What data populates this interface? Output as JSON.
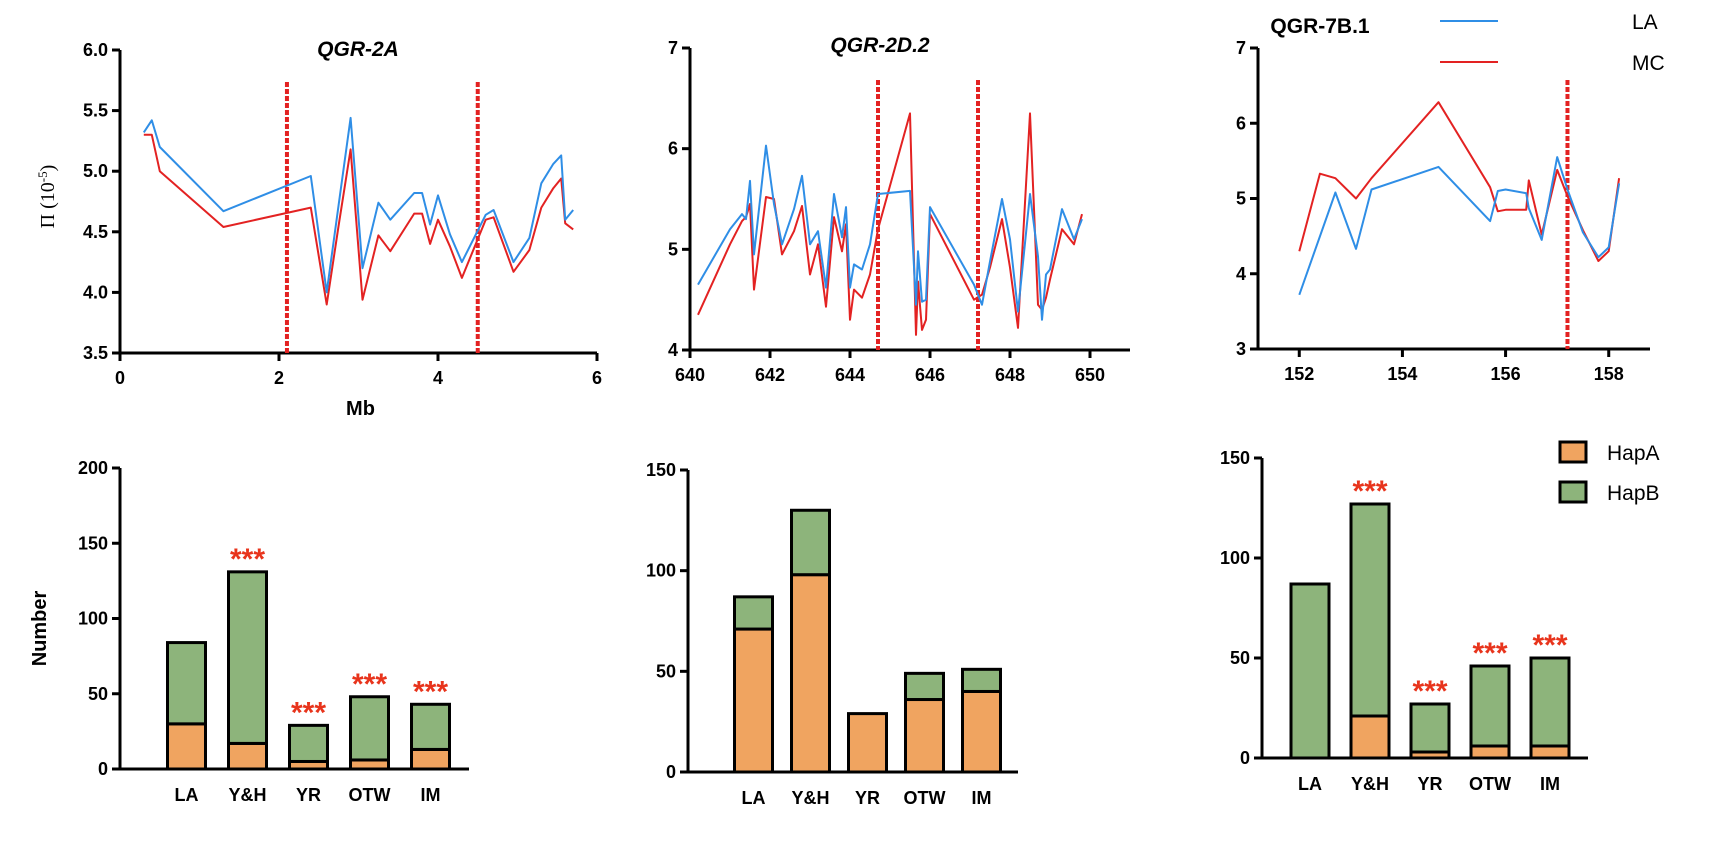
{
  "colors": {
    "LA_line": "#2f8ee6",
    "MC_line": "#e32222",
    "marker": "#e32222",
    "HapA": "#f0a460",
    "HapB": "#8db47b",
    "sig": "#e8341c"
  },
  "legends": {
    "lines": [
      {
        "key": "LA",
        "label": "LA"
      },
      {
        "key": "MC",
        "label": "MC"
      }
    ],
    "bars": [
      {
        "key": "HapA",
        "label": "HapA"
      },
      {
        "key": "HapB",
        "label": "HapB"
      }
    ]
  },
  "chart_data": [
    {
      "type": "line",
      "title": "QGR-2A",
      "title_italic": true,
      "xlabel": "Mb",
      "ylabel_parts": [
        "Π (",
        "10",
        "-5",
        ")"
      ],
      "xlim": [
        0,
        6
      ],
      "ylim": [
        3.5,
        6.0
      ],
      "xticks": [
        0,
        2,
        4,
        6
      ],
      "xtick_labels": [
        "0",
        "2",
        "4",
        "6"
      ],
      "yticks": [
        3.5,
        4.0,
        4.5,
        5.0,
        5.5,
        6.0
      ],
      "ytick_labels": [
        "3.5",
        "4.0",
        "4.5",
        "5.0",
        "5.5",
        "6.0"
      ],
      "markers": [
        2.1,
        4.5
      ],
      "series": [
        {
          "name": "LA",
          "x": [
            0.3,
            0.4,
            0.5,
            1.3,
            2.4,
            2.6,
            2.75,
            2.9,
            3.05,
            3.25,
            3.4,
            3.7,
            3.8,
            3.9,
            4.0,
            4.15,
            4.3,
            4.6,
            4.7,
            4.95,
            5.15,
            5.3,
            5.45,
            5.55,
            5.6,
            5.7
          ],
          "y": [
            5.32,
            5.42,
            5.2,
            4.67,
            4.96,
            4.0,
            4.72,
            5.44,
            4.2,
            4.74,
            4.6,
            4.82,
            4.82,
            4.56,
            4.8,
            4.48,
            4.25,
            4.64,
            4.68,
            4.25,
            4.45,
            4.9,
            5.06,
            5.13,
            4.6,
            4.68
          ]
        },
        {
          "name": "MC",
          "x": [
            0.3,
            0.4,
            0.5,
            1.3,
            2.4,
            2.6,
            2.75,
            2.9,
            3.05,
            3.25,
            3.4,
            3.7,
            3.8,
            3.9,
            4.0,
            4.15,
            4.3,
            4.6,
            4.7,
            4.95,
            5.15,
            5.3,
            5.45,
            5.55,
            5.6,
            5.7
          ],
          "y": [
            5.3,
            5.3,
            5.0,
            4.54,
            4.7,
            3.9,
            4.55,
            5.18,
            3.94,
            4.47,
            4.34,
            4.65,
            4.65,
            4.4,
            4.6,
            4.38,
            4.12,
            4.6,
            4.62,
            4.17,
            4.35,
            4.7,
            4.86,
            4.94,
            4.57,
            4.52
          ]
        }
      ]
    },
    {
      "type": "line",
      "title": "QGR-2D.2",
      "title_italic": true,
      "xlabel": "",
      "xlim": [
        640,
        651
      ],
      "ylim": [
        4,
        7
      ],
      "xticks": [
        640,
        642,
        644,
        646,
        648,
        650
      ],
      "xtick_labels": [
        "640",
        "642",
        "644",
        "646",
        "648",
        "650"
      ],
      "yticks": [
        4,
        5,
        6,
        7
      ],
      "ytick_labels": [
        "4",
        "5",
        "6",
        "7"
      ],
      "markers": [
        644.7,
        647.2
      ],
      "series": [
        {
          "name": "LA",
          "x": [
            640.2,
            641.0,
            641.3,
            641.4,
            641.5,
            641.6,
            641.9,
            642.1,
            642.3,
            642.6,
            642.8,
            643.0,
            643.2,
            643.4,
            643.6,
            643.8,
            643.9,
            644.0,
            644.1,
            644.3,
            644.5,
            644.7,
            645.5,
            645.65,
            645.7,
            645.8,
            645.9,
            646.0,
            647.1,
            647.3,
            647.5,
            647.8,
            648.0,
            648.2,
            648.5,
            648.7,
            648.8,
            648.9,
            649.0,
            649.3,
            649.6,
            649.8
          ],
          "y": [
            4.65,
            5.2,
            5.35,
            5.3,
            5.68,
            4.95,
            6.03,
            5.45,
            5.05,
            5.4,
            5.73,
            5.05,
            5.18,
            4.62,
            5.55,
            5.12,
            5.42,
            4.62,
            4.85,
            4.8,
            5.05,
            5.55,
            5.58,
            4.45,
            4.98,
            4.48,
            4.5,
            5.42,
            4.65,
            4.45,
            4.88,
            5.5,
            5.1,
            4.38,
            5.55,
            4.93,
            4.3,
            4.75,
            4.8,
            5.4,
            5.1,
            5.3
          ]
        },
        {
          "name": "MC",
          "x": [
            640.2,
            641.0,
            641.3,
            641.4,
            641.5,
            641.6,
            641.9,
            642.1,
            642.3,
            642.6,
            642.8,
            643.0,
            643.2,
            643.4,
            643.6,
            643.8,
            643.9,
            644.0,
            644.1,
            644.3,
            644.5,
            644.7,
            645.5,
            645.65,
            645.7,
            645.8,
            645.9,
            646.0,
            647.1,
            647.3,
            647.5,
            647.8,
            648.0,
            648.2,
            648.5,
            648.7,
            648.8,
            648.9,
            649.0,
            649.3,
            649.6,
            649.8
          ],
          "y": [
            4.35,
            5.05,
            5.28,
            5.32,
            5.45,
            4.6,
            5.52,
            5.5,
            4.95,
            5.18,
            5.43,
            4.75,
            5.05,
            4.43,
            5.32,
            4.98,
            5.25,
            4.3,
            4.6,
            4.52,
            4.75,
            5.2,
            6.35,
            4.15,
            4.68,
            4.2,
            4.3,
            5.35,
            4.5,
            4.55,
            4.82,
            5.3,
            4.82,
            4.22,
            6.35,
            4.45,
            4.4,
            4.52,
            4.7,
            5.2,
            5.05,
            5.35
          ]
        }
      ]
    },
    {
      "type": "line",
      "title": "QGR-7B.1",
      "title_italic": false,
      "xlabel": "",
      "xlim": [
        151.2,
        158.8
      ],
      "ylim": [
        3,
        7
      ],
      "xticks": [
        152,
        154,
        156,
        158
      ],
      "xtick_labels": [
        "152",
        "154",
        "156",
        "158"
      ],
      "yticks": [
        3,
        4,
        5,
        6,
        7
      ],
      "ytick_labels": [
        "3",
        "4",
        "5",
        "6",
        "7"
      ],
      "markers": [
        157.2
      ],
      "series": [
        {
          "name": "LA",
          "x": [
            152.0,
            152.7,
            153.1,
            153.4,
            154.7,
            155.7,
            155.85,
            156.0,
            156.4,
            156.45,
            156.7,
            157.0,
            157.2,
            157.5,
            157.8,
            158.0,
            158.2
          ],
          "y": [
            3.72,
            5.08,
            4.33,
            5.12,
            5.42,
            4.7,
            5.1,
            5.12,
            5.07,
            4.87,
            4.45,
            5.55,
            5.12,
            4.55,
            4.22,
            4.35,
            5.2
          ]
        },
        {
          "name": "MC",
          "x": [
            152.0,
            152.4,
            152.7,
            153.1,
            153.4,
            154.7,
            155.7,
            155.85,
            156.0,
            156.4,
            156.45,
            156.7,
            157.0,
            157.2,
            157.5,
            157.8,
            158.0,
            158.2
          ],
          "y": [
            4.3,
            5.33,
            5.27,
            5.0,
            5.27,
            6.28,
            5.15,
            4.83,
            4.85,
            4.85,
            5.24,
            4.52,
            5.38,
            5.03,
            4.58,
            4.17,
            4.3,
            5.27
          ]
        }
      ]
    },
    {
      "type": "bar",
      "stacked": true,
      "ylabel": "Number",
      "categories": [
        "LA",
        "Y&H",
        "YR",
        "OTW",
        "IM"
      ],
      "ylim": [
        0,
        200
      ],
      "yticks": [
        0,
        50,
        100,
        150,
        200
      ],
      "ytick_labels": [
        "0",
        "50",
        "100",
        "150",
        "200"
      ],
      "series": [
        {
          "name": "HapA",
          "values": [
            30,
            17,
            5,
            6,
            13
          ]
        },
        {
          "name": "HapB",
          "values": [
            54,
            114,
            24,
            42,
            30
          ]
        }
      ],
      "significance": [
        "",
        "***",
        "***",
        "***",
        "***"
      ]
    },
    {
      "type": "bar",
      "stacked": true,
      "ylabel": "",
      "categories": [
        "LA",
        "Y&H",
        "YR",
        "OTW",
        "IM"
      ],
      "ylim": [
        0,
        150
      ],
      "yticks": [
        0,
        50,
        100,
        150
      ],
      "ytick_labels": [
        "0",
        "50",
        "100",
        "150"
      ],
      "series": [
        {
          "name": "HapA",
          "values": [
            71,
            98,
            29,
            36,
            40
          ]
        },
        {
          "name": "HapB",
          "values": [
            16,
            32,
            0,
            13,
            11
          ]
        }
      ],
      "significance": [
        "",
        "",
        "",
        "",
        ""
      ]
    },
    {
      "type": "bar",
      "stacked": true,
      "ylabel": "",
      "categories": [
        "LA",
        "Y&H",
        "YR",
        "OTW",
        "IM"
      ],
      "ylim": [
        0,
        150
      ],
      "yticks": [
        0,
        50,
        100,
        150
      ],
      "ytick_labels": [
        "0",
        "50",
        "100",
        "150"
      ],
      "series": [
        {
          "name": "HapA",
          "values": [
            0,
            21,
            3,
            6,
            6
          ]
        },
        {
          "name": "HapB",
          "values": [
            87,
            106,
            24,
            40,
            44
          ]
        }
      ],
      "significance": [
        "",
        "***",
        "***",
        "***",
        "***"
      ]
    }
  ]
}
